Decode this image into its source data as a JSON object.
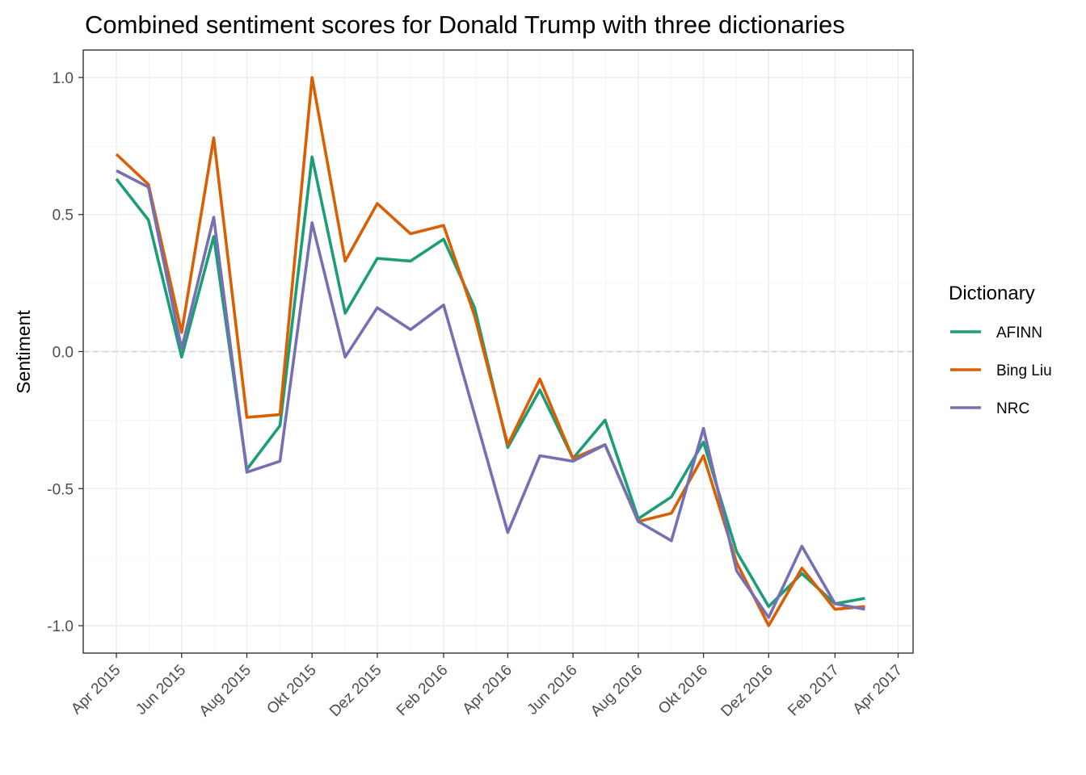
{
  "chart_data": {
    "type": "line",
    "title": "Combined sentiment scores for Donald Trump with three dictionaries",
    "xlabel": "",
    "ylabel": "Sentiment",
    "x_dates": [
      "2015-04-01",
      "2015-05-01",
      "2015-06-01",
      "2015-07-01",
      "2015-08-01",
      "2015-09-01",
      "2015-10-01",
      "2015-11-01",
      "2015-12-01",
      "2016-01-01",
      "2016-02-01",
      "2016-03-01",
      "2016-04-01",
      "2016-05-01",
      "2016-06-01",
      "2016-07-01",
      "2016-08-01",
      "2016-09-01",
      "2016-10-01",
      "2016-11-01",
      "2016-12-01",
      "2017-01-01",
      "2017-02-01",
      "2017-03-01"
    ],
    "x_ticks": [
      {
        "date": "2015-04-01",
        "label": "Apr 2015"
      },
      {
        "date": "2015-06-01",
        "label": "Jun 2015"
      },
      {
        "date": "2015-08-01",
        "label": "Aug 2015"
      },
      {
        "date": "2015-10-01",
        "label": "Okt 2015"
      },
      {
        "date": "2015-12-01",
        "label": "Dez 2015"
      },
      {
        "date": "2016-02-01",
        "label": "Feb 2016"
      },
      {
        "date": "2016-04-01",
        "label": "Apr 2016"
      },
      {
        "date": "2016-06-01",
        "label": "Jun 2016"
      },
      {
        "date": "2016-08-01",
        "label": "Aug 2016"
      },
      {
        "date": "2016-10-01",
        "label": "Okt 2016"
      },
      {
        "date": "2016-12-01",
        "label": "Dez 2016"
      },
      {
        "date": "2017-02-01",
        "label": "Feb 2017"
      },
      {
        "date": "2017-04-01",
        "label": "Apr 2017"
      }
    ],
    "y_ticks": [
      {
        "value": 1.0,
        "label": "1.0"
      },
      {
        "value": 0.5,
        "label": "0.5"
      },
      {
        "value": 0.0,
        "label": "0.0"
      },
      {
        "value": -0.5,
        "label": "-0.5"
      },
      {
        "value": -1.0,
        "label": "-1.0"
      }
    ],
    "xlim": [
      "2015-03-01",
      "2017-04-15"
    ],
    "ylim": [
      -1.1,
      1.1
    ],
    "grid": true,
    "zero_line": "dashed",
    "legend": {
      "title": "Dictionary",
      "position": "right"
    },
    "series": [
      {
        "name": "AFINN",
        "color": "#1b9e77",
        "values": [
          0.63,
          0.48,
          -0.02,
          0.42,
          -0.43,
          -0.27,
          0.71,
          0.14,
          0.34,
          0.33,
          0.41,
          0.16,
          -0.35,
          -0.14,
          -0.39,
          -0.25,
          -0.61,
          -0.53,
          -0.33,
          -0.73,
          -0.93,
          -0.81,
          -0.92,
          -0.9
        ]
      },
      {
        "name": "Bing Liu",
        "color": "#d95f02",
        "values": [
          0.72,
          0.61,
          0.07,
          0.78,
          -0.24,
          -0.23,
          1.0,
          0.33,
          0.54,
          0.43,
          0.46,
          0.13,
          -0.34,
          -0.1,
          -0.39,
          -0.34,
          -0.62,
          -0.59,
          -0.38,
          -0.77,
          -1.0,
          -0.79,
          -0.94,
          -0.93
        ]
      },
      {
        "name": "NRC",
        "color": "#7570b3",
        "values": [
          0.66,
          0.6,
          0.01,
          0.49,
          -0.44,
          -0.4,
          0.47,
          -0.02,
          0.16,
          0.08,
          0.17,
          -0.23,
          -0.66,
          -0.38,
          -0.4,
          -0.34,
          -0.62,
          -0.69,
          -0.28,
          -0.8,
          -0.97,
          -0.71,
          -0.92,
          -0.94
        ]
      }
    ]
  }
}
